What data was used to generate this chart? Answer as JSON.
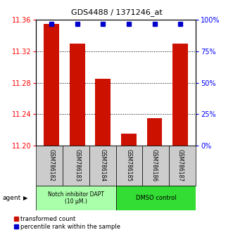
{
  "title": "GDS4488 / 1371246_at",
  "categories": [
    "GSM786182",
    "GSM786183",
    "GSM786184",
    "GSM786185",
    "GSM786186",
    "GSM786187"
  ],
  "bar_values": [
    11.355,
    11.33,
    11.285,
    11.215,
    11.235,
    11.33
  ],
  "percentile_values": [
    97,
    97,
    97,
    97,
    97,
    97
  ],
  "bar_color": "#cc1100",
  "percentile_color": "#0000cc",
  "ylim_left": [
    11.2,
    11.36
  ],
  "ylim_right": [
    0,
    100
  ],
  "yticks_left": [
    11.2,
    11.24,
    11.28,
    11.32,
    11.36
  ],
  "yticks_right": [
    0,
    25,
    50,
    75,
    100
  ],
  "ytick_labels_right": [
    "0%",
    "25%",
    "50%",
    "75%",
    "100%"
  ],
  "group1_label": "Notch inhibitor DAPT\n(10 μM.)",
  "group2_label": "DMSO control",
  "group1_color": "#aaffaa",
  "group2_color": "#33dd33",
  "agent_label": "agent",
  "legend_items": [
    "transformed count",
    "percentile rank within the sample"
  ],
  "legend_colors": [
    "#cc1100",
    "#0000cc"
  ],
  "bar_width": 0.6,
  "baseline": 11.2,
  "bg_color": "#ffffff",
  "title_fontsize": 8,
  "axis_fontsize": 7,
  "label_fontsize": 5.5,
  "legend_fontsize": 6
}
